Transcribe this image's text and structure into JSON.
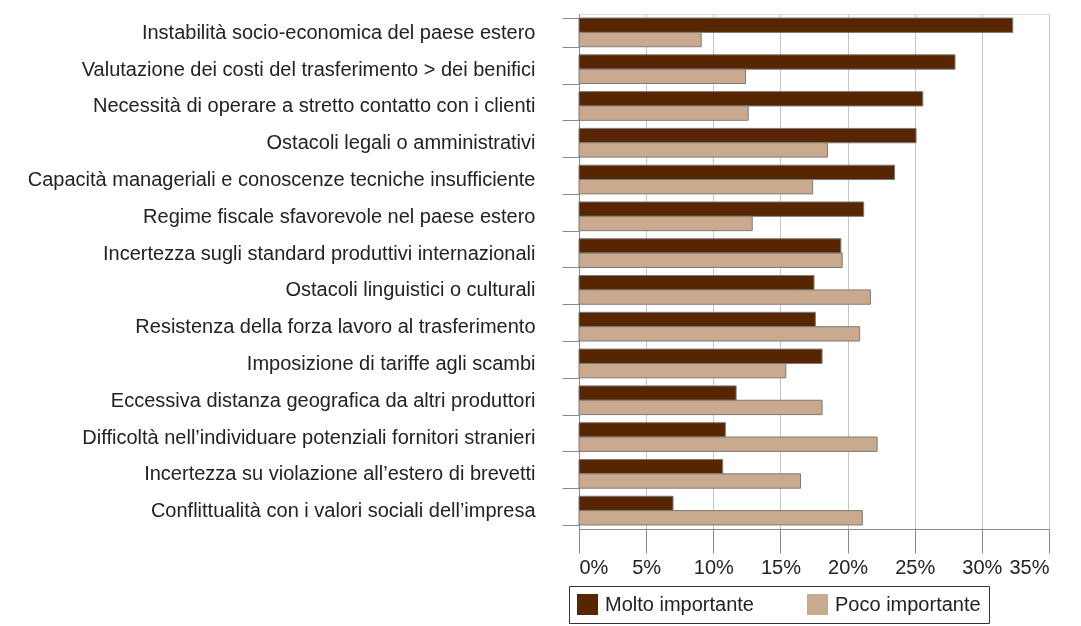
{
  "chart_data": {
    "type": "bar",
    "orientation": "horizontal",
    "categories": [
      "Instabilità socio-economica del paese estero",
      "Valutazione dei costi del trasferimento > dei benifici",
      "Necessità di operare a stretto contatto con i clienti",
      "Ostacoli legali o amministrativi",
      "Capacità manageriali e conoscenze tecniche insufficiente",
      "Regime fiscale sfavorevole nel paese estero",
      "Incertezza sugli standard produttivi internazionali",
      "Ostacoli linguistici o culturali",
      "Resistenza della forza lavoro al trasferimento",
      "Imposizione di tariffe agli scambi",
      "Eccessiva distanza geografica da altri produttori",
      "Difficoltà nell’individuare potenziali fornitori stranieri",
      "Incertezza su violazione all’estero di brevetti",
      "Conflittualità  con i valori sociali dell’impresa"
    ],
    "series": [
      {
        "name": "Molto importante",
        "color": "#572500",
        "values": [
          32.3,
          28.0,
          25.6,
          25.1,
          23.5,
          21.2,
          19.5,
          17.5,
          17.6,
          18.1,
          11.7,
          10.9,
          10.7,
          7.0
        ]
      },
      {
        "name": "Poco importante",
        "color": "#c9aa8e",
        "values": [
          9.1,
          12.4,
          12.6,
          18.5,
          17.4,
          12.9,
          19.6,
          21.7,
          20.9,
          15.4,
          18.1,
          22.2,
          16.5,
          21.1
        ]
      }
    ],
    "xlim": [
      0,
      35
    ],
    "xticks": [
      {
        "value": 0,
        "label": "0%"
      },
      {
        "value": 5,
        "label": "5%"
      },
      {
        "value": 10,
        "label": "10%"
      },
      {
        "value": 15,
        "label": "15%"
      },
      {
        "value": 20,
        "label": "20%"
      },
      {
        "value": 25,
        "label": "25%"
      },
      {
        "value": 30,
        "label": "30%"
      },
      {
        "value": 35,
        "label": "35%"
      }
    ],
    "grid": "x",
    "legend": "bottom"
  }
}
